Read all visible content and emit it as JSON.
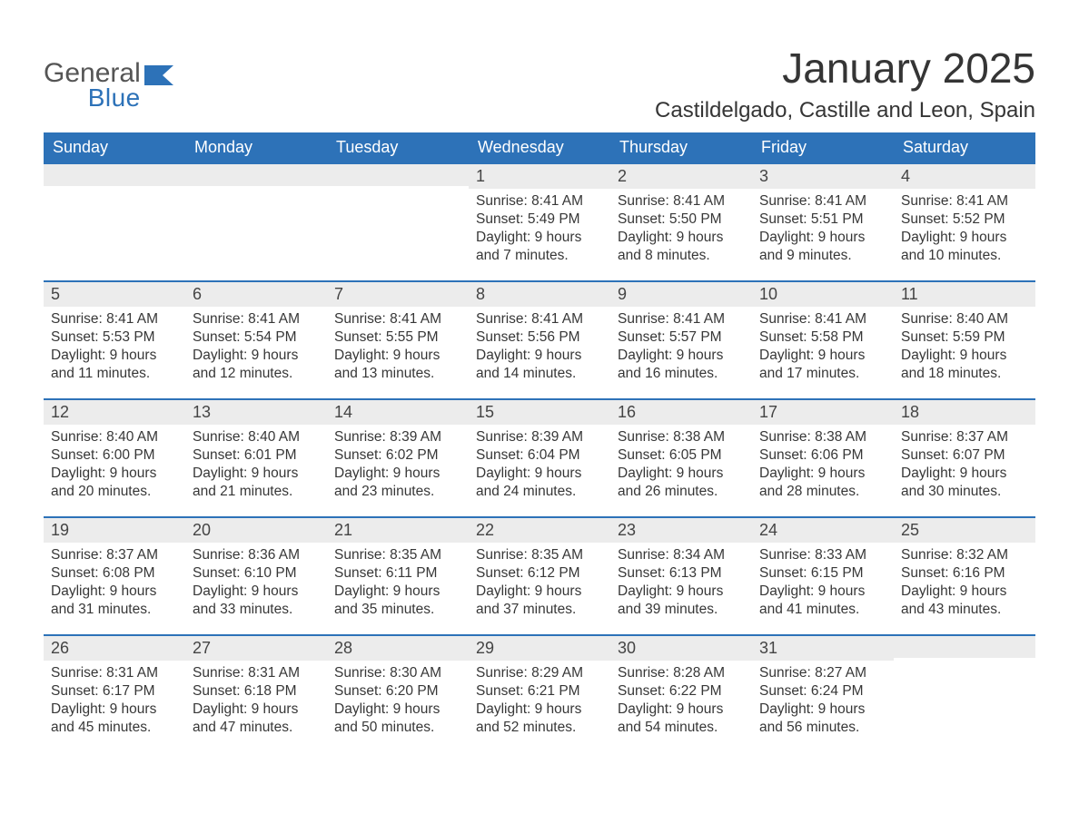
{
  "logo": {
    "word1": "General",
    "word2": "Blue"
  },
  "title": "January 2025",
  "location": "Castildelgado, Castille and Leon, Spain",
  "colors": {
    "brand": "#2d72b8",
    "header_bg": "#2d72b8",
    "daynum_bg": "#ececec",
    "text": "#333333"
  },
  "weekday_labels": [
    "Sunday",
    "Monday",
    "Tuesday",
    "Wednesday",
    "Thursday",
    "Friday",
    "Saturday"
  ],
  "field_labels": {
    "sunrise": "Sunrise: ",
    "sunset": "Sunset: ",
    "daylight": "Daylight: "
  },
  "weeks": [
    [
      null,
      null,
      null,
      {
        "n": "1",
        "sunrise": "8:41 AM",
        "sunset": "5:49 PM",
        "daylight": "9 hours and 7 minutes."
      },
      {
        "n": "2",
        "sunrise": "8:41 AM",
        "sunset": "5:50 PM",
        "daylight": "9 hours and 8 minutes."
      },
      {
        "n": "3",
        "sunrise": "8:41 AM",
        "sunset": "5:51 PM",
        "daylight": "9 hours and 9 minutes."
      },
      {
        "n": "4",
        "sunrise": "8:41 AM",
        "sunset": "5:52 PM",
        "daylight": "9 hours and 10 minutes."
      }
    ],
    [
      {
        "n": "5",
        "sunrise": "8:41 AM",
        "sunset": "5:53 PM",
        "daylight": "9 hours and 11 minutes."
      },
      {
        "n": "6",
        "sunrise": "8:41 AM",
        "sunset": "5:54 PM",
        "daylight": "9 hours and 12 minutes."
      },
      {
        "n": "7",
        "sunrise": "8:41 AM",
        "sunset": "5:55 PM",
        "daylight": "9 hours and 13 minutes."
      },
      {
        "n": "8",
        "sunrise": "8:41 AM",
        "sunset": "5:56 PM",
        "daylight": "9 hours and 14 minutes."
      },
      {
        "n": "9",
        "sunrise": "8:41 AM",
        "sunset": "5:57 PM",
        "daylight": "9 hours and 16 minutes."
      },
      {
        "n": "10",
        "sunrise": "8:41 AM",
        "sunset": "5:58 PM",
        "daylight": "9 hours and 17 minutes."
      },
      {
        "n": "11",
        "sunrise": "8:40 AM",
        "sunset": "5:59 PM",
        "daylight": "9 hours and 18 minutes."
      }
    ],
    [
      {
        "n": "12",
        "sunrise": "8:40 AM",
        "sunset": "6:00 PM",
        "daylight": "9 hours and 20 minutes."
      },
      {
        "n": "13",
        "sunrise": "8:40 AM",
        "sunset": "6:01 PM",
        "daylight": "9 hours and 21 minutes."
      },
      {
        "n": "14",
        "sunrise": "8:39 AM",
        "sunset": "6:02 PM",
        "daylight": "9 hours and 23 minutes."
      },
      {
        "n": "15",
        "sunrise": "8:39 AM",
        "sunset": "6:04 PM",
        "daylight": "9 hours and 24 minutes."
      },
      {
        "n": "16",
        "sunrise": "8:38 AM",
        "sunset": "6:05 PM",
        "daylight": "9 hours and 26 minutes."
      },
      {
        "n": "17",
        "sunrise": "8:38 AM",
        "sunset": "6:06 PM",
        "daylight": "9 hours and 28 minutes."
      },
      {
        "n": "18",
        "sunrise": "8:37 AM",
        "sunset": "6:07 PM",
        "daylight": "9 hours and 30 minutes."
      }
    ],
    [
      {
        "n": "19",
        "sunrise": "8:37 AM",
        "sunset": "6:08 PM",
        "daylight": "9 hours and 31 minutes."
      },
      {
        "n": "20",
        "sunrise": "8:36 AM",
        "sunset": "6:10 PM",
        "daylight": "9 hours and 33 minutes."
      },
      {
        "n": "21",
        "sunrise": "8:35 AM",
        "sunset": "6:11 PM",
        "daylight": "9 hours and 35 minutes."
      },
      {
        "n": "22",
        "sunrise": "8:35 AM",
        "sunset": "6:12 PM",
        "daylight": "9 hours and 37 minutes."
      },
      {
        "n": "23",
        "sunrise": "8:34 AM",
        "sunset": "6:13 PM",
        "daylight": "9 hours and 39 minutes."
      },
      {
        "n": "24",
        "sunrise": "8:33 AM",
        "sunset": "6:15 PM",
        "daylight": "9 hours and 41 minutes."
      },
      {
        "n": "25",
        "sunrise": "8:32 AM",
        "sunset": "6:16 PM",
        "daylight": "9 hours and 43 minutes."
      }
    ],
    [
      {
        "n": "26",
        "sunrise": "8:31 AM",
        "sunset": "6:17 PM",
        "daylight": "9 hours and 45 minutes."
      },
      {
        "n": "27",
        "sunrise": "8:31 AM",
        "sunset": "6:18 PM",
        "daylight": "9 hours and 47 minutes."
      },
      {
        "n": "28",
        "sunrise": "8:30 AM",
        "sunset": "6:20 PM",
        "daylight": "9 hours and 50 minutes."
      },
      {
        "n": "29",
        "sunrise": "8:29 AM",
        "sunset": "6:21 PM",
        "daylight": "9 hours and 52 minutes."
      },
      {
        "n": "30",
        "sunrise": "8:28 AM",
        "sunset": "6:22 PM",
        "daylight": "9 hours and 54 minutes."
      },
      {
        "n": "31",
        "sunrise": "8:27 AM",
        "sunset": "6:24 PM",
        "daylight": "9 hours and 56 minutes."
      },
      null
    ]
  ]
}
